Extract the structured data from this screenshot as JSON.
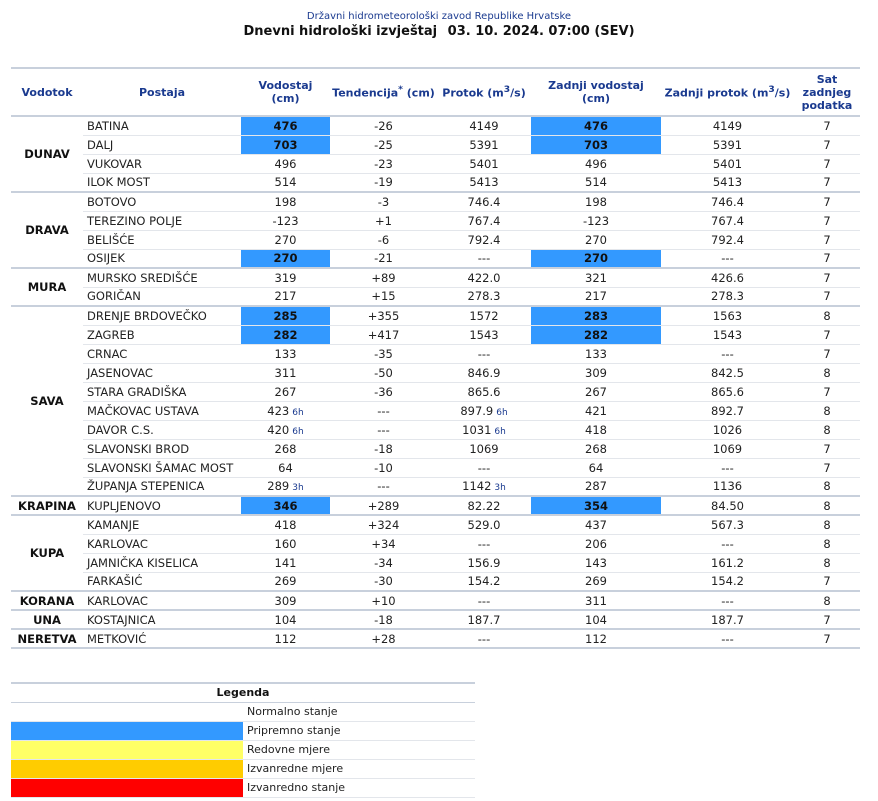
{
  "header": {
    "org": "Državni hidrometeorološki zavod Republike Hrvatske",
    "title": "Dnevni hidrološki izvještaj",
    "datetime": "03. 10. 2024. 07:00 (SEV)"
  },
  "columns": {
    "vodotok": "Vodotok",
    "postaja": "Postaja",
    "vodostaj": "Vodostaj (cm)",
    "tendencija": "Tendencija",
    "tendencija_mark": "*",
    "tendencija_unit": "(cm)",
    "protok": "Protok (m",
    "protok_sup": "3",
    "protok_end": "/s)",
    "zadnji_vodostaj": "Zadnji vodostaj (cm)",
    "zadnji_protok": "Zadnji protok (m",
    "zadnji_protok_sup": "3",
    "zadnji_protok_end": "/s)",
    "sat": "Sat zadnjeg podatka"
  },
  "groups": [
    {
      "river": "DUNAV",
      "rows": [
        {
          "station": "BATINA",
          "level": "476",
          "level_note": "",
          "trend": "-26",
          "flow": "4149",
          "flow_note": "",
          "last_level": "476",
          "last_flow": "4149",
          "hour": "7",
          "status": "pripremno"
        },
        {
          "station": "DALJ",
          "level": "703",
          "level_note": "",
          "trend": "-25",
          "flow": "5391",
          "flow_note": "",
          "last_level": "703",
          "last_flow": "5391",
          "hour": "7",
          "status": "pripremno"
        },
        {
          "station": "VUKOVAR",
          "level": "496",
          "level_note": "",
          "trend": "-23",
          "flow": "5401",
          "flow_note": "",
          "last_level": "496",
          "last_flow": "5401",
          "hour": "7",
          "status": "normalno"
        },
        {
          "station": "ILOK MOST",
          "level": "514",
          "level_note": "",
          "trend": "-19",
          "flow": "5413",
          "flow_note": "",
          "last_level": "514",
          "last_flow": "5413",
          "hour": "7",
          "status": "normalno"
        }
      ]
    },
    {
      "river": "DRAVA",
      "rows": [
        {
          "station": "BOTOVO",
          "level": "198",
          "level_note": "",
          "trend": "-3",
          "flow": "746.4",
          "flow_note": "",
          "last_level": "198",
          "last_flow": "746.4",
          "hour": "7",
          "status": "normalno"
        },
        {
          "station": "TEREZINO POLJE",
          "level": "-123",
          "level_note": "",
          "trend": "+1",
          "flow": "767.4",
          "flow_note": "",
          "last_level": "-123",
          "last_flow": "767.4",
          "hour": "7",
          "status": "normalno"
        },
        {
          "station": "BELIŠĆE",
          "level": "270",
          "level_note": "",
          "trend": "-6",
          "flow": "792.4",
          "flow_note": "",
          "last_level": "270",
          "last_flow": "792.4",
          "hour": "7",
          "status": "normalno"
        },
        {
          "station": "OSIJEK",
          "level": "270",
          "level_note": "",
          "trend": "-21",
          "flow": "---",
          "flow_note": "",
          "last_level": "270",
          "last_flow": "---",
          "hour": "7",
          "status": "pripremno"
        }
      ]
    },
    {
      "river": "MURA",
      "rows": [
        {
          "station": "MURSKO SREDIŠĆE",
          "level": "319",
          "level_note": "",
          "trend": "+89",
          "flow": "422.0",
          "flow_note": "",
          "last_level": "321",
          "last_flow": "426.6",
          "hour": "7",
          "status": "normalno"
        },
        {
          "station": "GORIČAN",
          "level": "217",
          "level_note": "",
          "trend": "+15",
          "flow": "278.3",
          "flow_note": "",
          "last_level": "217",
          "last_flow": "278.3",
          "hour": "7",
          "status": "normalno"
        }
      ]
    },
    {
      "river": "SAVA",
      "rows": [
        {
          "station": "DRENJE BRDOVEČKO",
          "level": "285",
          "level_note": "",
          "trend": "+355",
          "flow": "1572",
          "flow_note": "",
          "last_level": "283",
          "last_flow": "1563",
          "hour": "8",
          "status": "pripremno"
        },
        {
          "station": "ZAGREB",
          "level": "282",
          "level_note": "",
          "trend": "+417",
          "flow": "1543",
          "flow_note": "",
          "last_level": "282",
          "last_flow": "1543",
          "hour": "7",
          "status": "pripremno"
        },
        {
          "station": "CRNAC",
          "level": "133",
          "level_note": "",
          "trend": "-35",
          "flow": "---",
          "flow_note": "",
          "last_level": "133",
          "last_flow": "---",
          "hour": "7",
          "status": "normalno"
        },
        {
          "station": "JASENOVAC",
          "level": "311",
          "level_note": "",
          "trend": "-50",
          "flow": "846.9",
          "flow_note": "",
          "last_level": "309",
          "last_flow": "842.5",
          "hour": "8",
          "status": "normalno"
        },
        {
          "station": "STARA GRADIŠKA",
          "level": "267",
          "level_note": "",
          "trend": "-36",
          "flow": "865.6",
          "flow_note": "",
          "last_level": "267",
          "last_flow": "865.6",
          "hour": "7",
          "status": "normalno"
        },
        {
          "station": "MAČKOVAC USTAVA",
          "level": "423",
          "level_note": "6h",
          "trend": "---",
          "flow": "897.9",
          "flow_note": "6h",
          "last_level": "421",
          "last_flow": "892.7",
          "hour": "8",
          "status": "normalno"
        },
        {
          "station": "DAVOR C.S.",
          "level": "420",
          "level_note": "6h",
          "trend": "---",
          "flow": "1031",
          "flow_note": "6h",
          "last_level": "418",
          "last_flow": "1026",
          "hour": "8",
          "status": "normalno"
        },
        {
          "station": "SLAVONSKI BROD",
          "level": "268",
          "level_note": "",
          "trend": "-18",
          "flow": "1069",
          "flow_note": "",
          "last_level": "268",
          "last_flow": "1069",
          "hour": "7",
          "status": "normalno"
        },
        {
          "station": "SLAVONSKI ŠAMAC MOST",
          "level": "64",
          "level_note": "",
          "trend": "-10",
          "flow": "---",
          "flow_note": "",
          "last_level": "64",
          "last_flow": "---",
          "hour": "7",
          "status": "normalno"
        },
        {
          "station": "ŽUPANJA STEPENICA",
          "level": "289",
          "level_note": "3h",
          "trend": "---",
          "flow": "1142",
          "flow_note": "3h",
          "last_level": "287",
          "last_flow": "1136",
          "hour": "8",
          "status": "normalno"
        }
      ]
    },
    {
      "river": "KRAPINA",
      "rows": [
        {
          "station": "KUPLJENOVO",
          "level": "346",
          "level_note": "",
          "trend": "+289",
          "flow": "82.22",
          "flow_note": "",
          "last_level": "354",
          "last_flow": "84.50",
          "hour": "8",
          "status": "pripremno"
        }
      ]
    },
    {
      "river": "KUPA",
      "rows": [
        {
          "station": "KAMANJE",
          "level": "418",
          "level_note": "",
          "trend": "+324",
          "flow": "529.0",
          "flow_note": "",
          "last_level": "437",
          "last_flow": "567.3",
          "hour": "8",
          "status": "normalno"
        },
        {
          "station": "KARLOVAC",
          "level": "160",
          "level_note": "",
          "trend": "+34",
          "flow": "---",
          "flow_note": "",
          "last_level": "206",
          "last_flow": "---",
          "hour": "8",
          "status": "normalno"
        },
        {
          "station": "JAMNIČKA KISELICA",
          "level": "141",
          "level_note": "",
          "trend": "-34",
          "flow": "156.9",
          "flow_note": "",
          "last_level": "143",
          "last_flow": "161.2",
          "hour": "8",
          "status": "normalno"
        },
        {
          "station": "FARKAŠIĆ",
          "level": "269",
          "level_note": "",
          "trend": "-30",
          "flow": "154.2",
          "flow_note": "",
          "last_level": "269",
          "last_flow": "154.2",
          "hour": "7",
          "status": "normalno"
        }
      ]
    },
    {
      "river": "KORANA",
      "rows": [
        {
          "station": "KARLOVAC",
          "level": "309",
          "level_note": "",
          "trend": "+10",
          "flow": "---",
          "flow_note": "",
          "last_level": "311",
          "last_flow": "---",
          "hour": "8",
          "status": "normalno"
        }
      ]
    },
    {
      "river": "UNA",
      "rows": [
        {
          "station": "KOSTAJNICA",
          "level": "104",
          "level_note": "",
          "trend": "-18",
          "flow": "187.7",
          "flow_note": "",
          "last_level": "104",
          "last_flow": "187.7",
          "hour": "7",
          "status": "normalno"
        }
      ]
    },
    {
      "river": "NERETVA",
      "rows": [
        {
          "station": "METKOVIĆ",
          "level": "112",
          "level_note": "",
          "trend": "+28",
          "flow": "---",
          "flow_note": "",
          "last_level": "112",
          "last_flow": "---",
          "hour": "7",
          "status": "normalno"
        }
      ]
    }
  ],
  "status_colors": {
    "normalno": "#ffffff",
    "pripremno": "#3399ff",
    "redovne": "#ffff66",
    "izvanredne_mjere": "#ffcc00",
    "izvanredno": "#ff0000"
  },
  "legend": {
    "title": "Legenda",
    "items": [
      {
        "label": "Normalno stanje",
        "color": "#ffffff"
      },
      {
        "label": "Pripremno stanje",
        "color": "#3399ff"
      },
      {
        "label": "Redovne mjere",
        "color": "#ffff66"
      },
      {
        "label": "Izvanredne mjere",
        "color": "#ffcc00"
      },
      {
        "label": "Izvanredno stanje",
        "color": "#ff0000"
      }
    ]
  }
}
